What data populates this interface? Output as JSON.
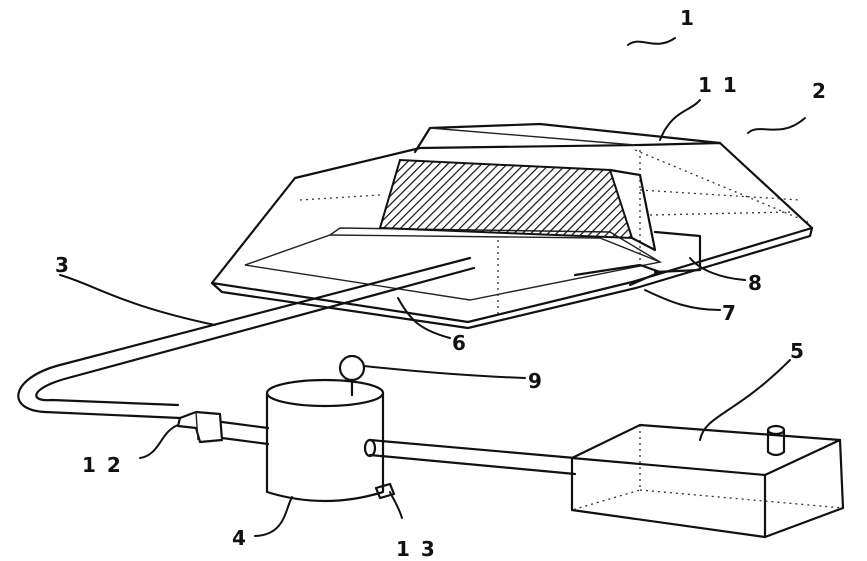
{
  "figure": {
    "labels": {
      "apparatus": "1",
      "housing": "2",
      "pipe": "3",
      "tank": "4",
      "container": "5",
      "part_6": "6",
      "part_7": "7",
      "part_8": "8",
      "part_9": "9",
      "part_11": "1 1",
      "part_12": "1 2",
      "part_13": "1 3"
    },
    "colors": {
      "ink": "#111111",
      "paper": "#ffffff"
    }
  }
}
